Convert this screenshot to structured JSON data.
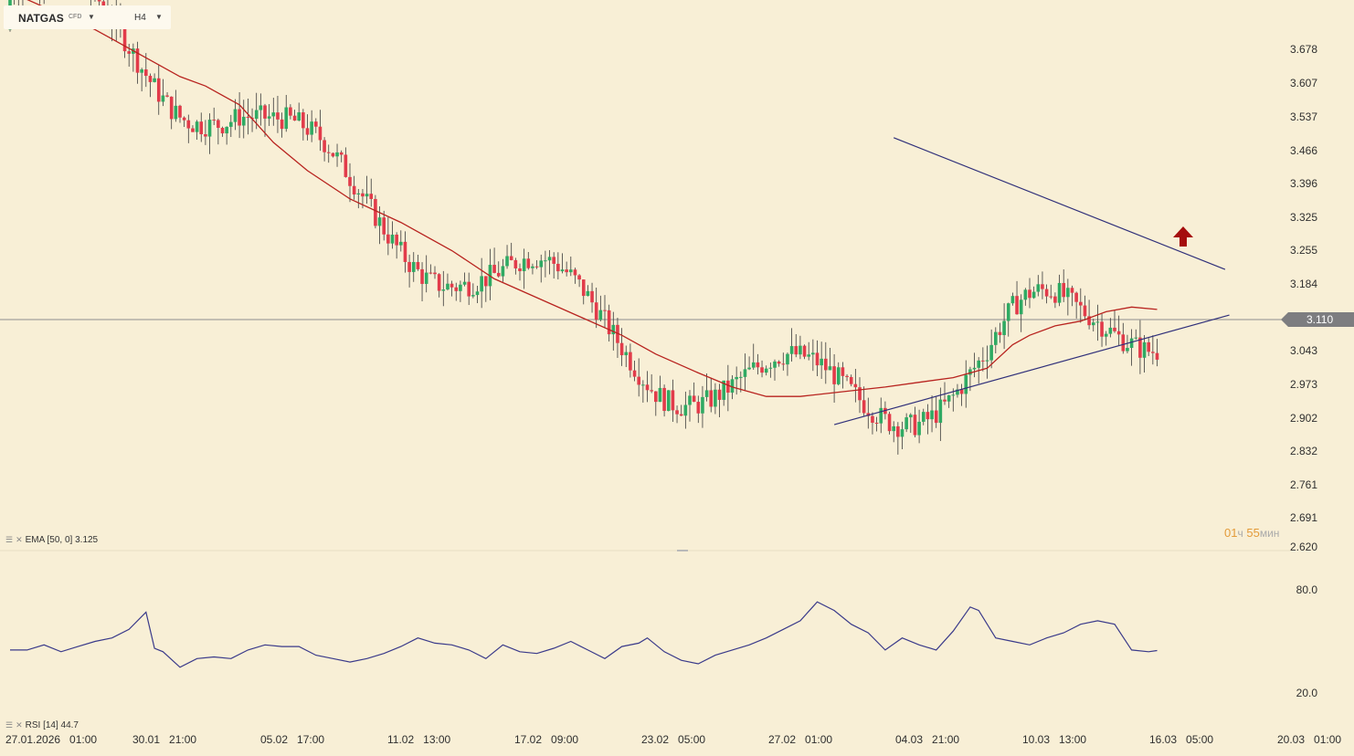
{
  "header": {
    "symbol": "NATGAS",
    "symbol_type": "CFD",
    "timeframe": "H4"
  },
  "price_axis": {
    "ticks": [
      "3.678",
      "3.607",
      "3.537",
      "3.466",
      "3.396",
      "3.325",
      "3.255",
      "3.184",
      "3.043",
      "2.973",
      "2.902",
      "2.832",
      "2.761",
      "2.691",
      "2.620"
    ],
    "current_price": "3.110"
  },
  "time_axis": {
    "ticks": [
      "27.01.2026   01:00",
      "30.01   21:00",
      "05.02   17:00",
      "11.02   13:00",
      "17.02   09:00",
      "23.02   05:00",
      "27.02   01:00",
      "04.03   21:00",
      "10.03   13:00",
      "16.03   05:00",
      "20.03   01:00"
    ]
  },
  "countdown": {
    "hours": "01",
    "hours_unit": "ч",
    "minutes": "55",
    "minutes_unit": "мин"
  },
  "indicators": {
    "ema_label": "EMA [50, 0]  3.125",
    "rsi_label": "RSI [14]  44.7",
    "rsi_ticks": [
      "80.0",
      "20.0"
    ]
  },
  "colors": {
    "background": "#f8efd6",
    "bull_candle": "#2faa63",
    "bear_candle": "#e23b4a",
    "ema_line": "#b8231f",
    "trendline": "#30307a",
    "rsi_line": "#3a3a8a",
    "arrow": "#a50d0d",
    "price_tag": "#7d7d80"
  },
  "chart_data": {
    "type": "candlestick",
    "symbol": "NATGAS",
    "timeframe": "H4",
    "ylim": [
      2.62,
      3.72
    ],
    "rsi_ylim": [
      0,
      100
    ],
    "current_price": 3.11,
    "ema_50_last": 3.125,
    "rsi_14_last": 44.7,
    "ema_path": [
      [
        0,
        3.8
      ],
      [
        20,
        3.72
      ],
      [
        34,
        3.65
      ],
      [
        40,
        3.62
      ],
      [
        46,
        3.6
      ],
      [
        54,
        3.56
      ],
      [
        62,
        3.48
      ],
      [
        70,
        3.42
      ],
      [
        80,
        3.36
      ],
      [
        92,
        3.31
      ],
      [
        104,
        3.25
      ],
      [
        114,
        3.19
      ],
      [
        124,
        3.15
      ],
      [
        134,
        3.11
      ],
      [
        144,
        3.07
      ],
      [
        152,
        3.03
      ],
      [
        162,
        2.99
      ],
      [
        170,
        2.96
      ],
      [
        178,
        2.94
      ],
      [
        186,
        2.94
      ],
      [
        196,
        2.95
      ],
      [
        206,
        2.96
      ],
      [
        214,
        2.97
      ],
      [
        222,
        2.98
      ],
      [
        230,
        3.0
      ],
      [
        236,
        3.05
      ],
      [
        240,
        3.07
      ],
      [
        246,
        3.09
      ],
      [
        252,
        3.1
      ],
      [
        258,
        3.12
      ],
      [
        264,
        3.13
      ],
      [
        270,
        3.125
      ]
    ],
    "resistance_line": {
      "x": [
        208,
        286
      ],
      "y": [
        3.49,
        3.21
      ]
    },
    "support_line": {
      "x": [
        194,
        287
      ],
      "y": [
        2.88,
        3.113
      ]
    },
    "marker": {
      "type": "up-arrow",
      "x": 294,
      "y": 3.25
    },
    "rsi_path": [
      [
        0,
        45
      ],
      [
        4,
        45
      ],
      [
        8,
        48
      ],
      [
        12,
        44
      ],
      [
        16,
        47
      ],
      [
        20,
        50
      ],
      [
        24,
        52
      ],
      [
        28,
        57
      ],
      [
        32,
        67
      ],
      [
        34,
        46
      ],
      [
        36,
        44
      ],
      [
        40,
        35
      ],
      [
        44,
        40
      ],
      [
        48,
        41
      ],
      [
        52,
        40
      ],
      [
        56,
        45
      ],
      [
        60,
        48
      ],
      [
        64,
        47
      ],
      [
        68,
        47
      ],
      [
        72,
        42
      ],
      [
        76,
        40
      ],
      [
        80,
        38
      ],
      [
        84,
        40
      ],
      [
        88,
        43
      ],
      [
        92,
        47
      ],
      [
        96,
        52
      ],
      [
        100,
        49
      ],
      [
        104,
        48
      ],
      [
        108,
        45
      ],
      [
        112,
        40
      ],
      [
        116,
        48
      ],
      [
        120,
        44
      ],
      [
        124,
        43
      ],
      [
        128,
        46
      ],
      [
        132,
        50
      ],
      [
        136,
        45
      ],
      [
        140,
        40
      ],
      [
        144,
        47
      ],
      [
        148,
        49
      ],
      [
        150,
        52
      ],
      [
        154,
        44
      ],
      [
        158,
        39
      ],
      [
        162,
        37
      ],
      [
        166,
        42
      ],
      [
        170,
        45
      ],
      [
        174,
        48
      ],
      [
        178,
        52
      ],
      [
        182,
        57
      ],
      [
        186,
        62
      ],
      [
        190,
        73
      ],
      [
        194,
        68
      ],
      [
        198,
        60
      ],
      [
        202,
        55
      ],
      [
        206,
        45
      ],
      [
        210,
        52
      ],
      [
        214,
        48
      ],
      [
        218,
        45
      ],
      [
        222,
        56
      ],
      [
        226,
        70
      ],
      [
        228,
        68
      ],
      [
        232,
        52
      ],
      [
        236,
        50
      ],
      [
        240,
        48
      ],
      [
        244,
        52
      ],
      [
        248,
        55
      ],
      [
        252,
        60
      ],
      [
        256,
        62
      ],
      [
        260,
        60
      ],
      [
        264,
        45
      ],
      [
        268,
        44
      ],
      [
        270,
        44.7
      ]
    ]
  }
}
